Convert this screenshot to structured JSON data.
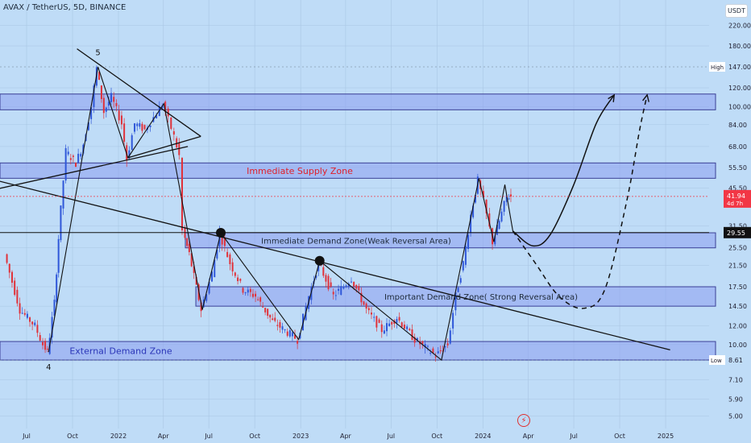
{
  "header": {
    "symbol_title": "AVAX / TetherUS, 5D, BINANCE",
    "currency": "USDT"
  },
  "brand_icon": "tradingview-logo-icon",
  "colors": {
    "background": "#bfdcf7",
    "zone_fill": "#8d9ff0",
    "zone_border": "#3a3f96",
    "up_candle": "#2f57d9",
    "down_candle": "#e0323a",
    "supply_label": "#e0202a",
    "demand_label": "#1e2a3a",
    "external_label": "#2b36b8",
    "price_badge": "#f23645",
    "grid": "#a9c6e3"
  },
  "chart_data": {
    "type": "candlestick",
    "title": "AVAX / TetherUS, 5D, BINANCE",
    "y_scale": "log",
    "ylim": [
      4.2,
      330
    ],
    "y_ticks": [
      "220.00",
      "180.00",
      "147.00",
      "120.00",
      "100.00",
      "84.00",
      "68.00",
      "55.50",
      "45.50",
      "41.94",
      "31.50",
      "29.55",
      "25.50",
      "21.50",
      "17.50",
      "14.50",
      "12.00",
      "10.00",
      "8.61",
      "7.10",
      "5.90",
      "5.00"
    ],
    "x_ticks": [
      "Jul",
      "Oct",
      "2022",
      "Apr",
      "Jul",
      "Oct",
      "2023",
      "Apr",
      "Jul",
      "Oct",
      "2024",
      "Apr",
      "Jul",
      "Oct",
      "2025"
    ],
    "last_price": "41.94",
    "last_price_countdown": "4d 7h",
    "level_line": "29.55",
    "high": {
      "label": "High",
      "value": "147.00"
    },
    "low": {
      "label": "Low",
      "value": "8.61"
    },
    "price_path": [
      [
        "2021-05-20",
        24
      ],
      [
        "2021-06-20",
        14
      ],
      [
        "2021-07-20",
        12
      ],
      [
        "2021-08-05",
        10
      ],
      [
        "2021-08-14",
        9.3
      ],
      [
        "2021-08-28",
        15
      ],
      [
        "2021-09-05",
        28
      ],
      [
        "2021-09-20",
        65
      ],
      [
        "2021-10-10",
        58
      ],
      [
        "2021-10-25",
        70
      ],
      [
        "2021-11-10",
        100
      ],
      [
        "2021-11-21",
        145
      ],
      [
        "2021-12-05",
        95
      ],
      [
        "2021-12-20",
        110
      ],
      [
        "2022-01-10",
        85
      ],
      [
        "2022-01-20",
        60
      ],
      [
        "2022-02-05",
        85
      ],
      [
        "2022-02-25",
        80
      ],
      [
        "2022-03-15",
        90
      ],
      [
        "2022-04-02",
        103
      ],
      [
        "2022-04-25",
        75
      ],
      [
        "2022-05-05",
        62
      ],
      [
        "2022-05-12",
        30
      ],
      [
        "2022-05-25",
        24
      ],
      [
        "2022-06-18",
        14
      ],
      [
        "2022-07-10",
        20
      ],
      [
        "2022-07-25",
        29.5
      ],
      [
        "2022-08-15",
        22
      ],
      [
        "2022-09-10",
        17
      ],
      [
        "2022-10-05",
        16
      ],
      [
        "2022-11-08",
        12.5
      ],
      [
        "2022-12-28",
        10.5
      ],
      [
        "2023-01-20",
        16
      ],
      [
        "2023-02-08",
        22
      ],
      [
        "2023-03-10",
        16
      ],
      [
        "2023-04-15",
        19
      ],
      [
        "2023-05-15",
        14
      ],
      [
        "2023-06-15",
        11.5
      ],
      [
        "2023-07-15",
        13
      ],
      [
        "2023-08-20",
        10.5
      ],
      [
        "2023-10-01",
        9
      ],
      [
        "2023-10-25",
        10
      ],
      [
        "2023-11-10",
        16
      ],
      [
        "2023-11-25",
        22
      ],
      [
        "2023-12-10",
        35
      ],
      [
        "2023-12-24",
        49
      ],
      [
        "2024-01-05",
        40
      ],
      [
        "2024-01-23",
        27
      ],
      [
        "2024-02-05",
        33
      ],
      [
        "2024-02-20",
        42
      ],
      [
        "2024-02-28",
        41.94
      ]
    ],
    "zones": [
      {
        "label": "",
        "low": 97,
        "high": 113
      },
      {
        "label": "Immediate Supply Zone",
        "low": 50,
        "high": 58
      },
      {
        "label": "Immediate Demand Zone(Weak Reversal Area)",
        "low": 25.5,
        "high": 29.5
      },
      {
        "label": "Important Demand Zone( Strong Reversal Area)",
        "low": 14.5,
        "high": 17.5
      },
      {
        "label": "External Demand Zone",
        "low": 8.61,
        "high": 10.3
      }
    ],
    "wave_labels": [
      {
        "label": "5",
        "date": "2021-11-21",
        "price": 170
      },
      {
        "label": "4",
        "date": "2021-08-14",
        "price": 8.1
      }
    ],
    "trendlines": [
      {
        "from": [
          "2021-10-10",
          175
        ],
        "to": [
          "2022-06-15",
          75
        ]
      },
      {
        "from": [
          "2022-01-20",
          61
        ],
        "to": [
          "2022-06-15",
          75
        ]
      },
      {
        "from": [
          "2021-05-01",
          45
        ],
        "to": [
          "2022-05-20",
          68
        ]
      },
      {
        "from": [
          "2021-05-01",
          49
        ],
        "to": [
          "2025-01-10",
          9.5
        ]
      }
    ],
    "zigzags": [
      [
        [
          "2021-08-14",
          9.3
        ],
        [
          "2021-11-21",
          147
        ],
        [
          "2022-01-20",
          61
        ],
        [
          "2022-04-02",
          103
        ],
        [
          "2022-06-18",
          14
        ]
      ],
      [
        [
          "2022-06-18",
          14
        ],
        [
          "2022-07-25",
          29.5
        ],
        [
          "2022-12-28",
          10.5
        ],
        [
          "2023-02-08",
          22.5
        ],
        [
          "2023-10-10",
          8.61
        ],
        [
          "2023-12-24",
          50
        ],
        [
          "2024-01-23",
          27
        ],
        [
          "2024-02-14",
          47
        ],
        [
          "2024-03-01",
          30
        ]
      ]
    ],
    "pivot_markers": [
      {
        "date": "2022-07-25",
        "price": 29.5
      },
      {
        "date": "2023-02-08",
        "price": 22.5
      }
    ],
    "projection_solid": [
      [
        "2024-03-01",
        30
      ],
      [
        "2024-04-10",
        26
      ],
      [
        "2024-05-15",
        29
      ],
      [
        "2024-07-01",
        47
      ],
      [
        "2024-08-15",
        85
      ],
      [
        "2024-09-20",
        112
      ]
    ],
    "projection_dashed": [
      [
        "2024-03-01",
        30
      ],
      [
        "2024-04-15",
        22
      ],
      [
        "2024-06-01",
        16
      ],
      [
        "2024-07-20",
        14.2
      ],
      [
        "2024-09-01",
        17
      ],
      [
        "2024-10-15",
        40
      ],
      [
        "2024-11-10",
        80
      ],
      [
        "2024-11-25",
        112
      ]
    ]
  }
}
